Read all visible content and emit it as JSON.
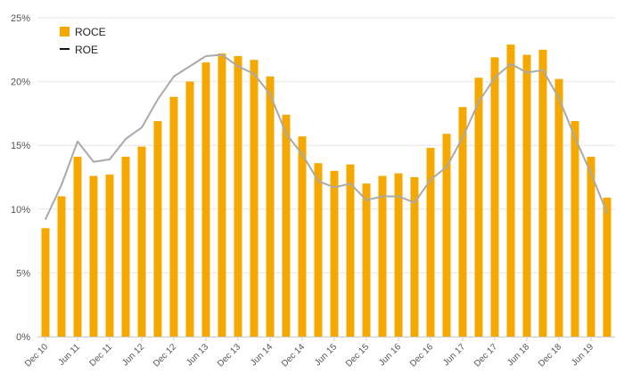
{
  "chart_data": {
    "type": "bar",
    "categories": [
      "Dec 10",
      "Mar 11",
      "Jun 11",
      "Sep 11",
      "Dec 11",
      "Mar 12",
      "Jun 12",
      "Sep 12",
      "Dec 12",
      "Mar 13",
      "Jun 13",
      "Sep 13",
      "Dec 13",
      "Mar 14",
      "Jun 14",
      "Sep 14",
      "Dec 14",
      "Mar 15",
      "Jun 15",
      "Sep 15",
      "Dec 15",
      "Mar 16",
      "Jun 16",
      "Sep 16",
      "Dec 16",
      "Mar 17",
      "Jun 17",
      "Sep 17",
      "Dec 17",
      "Mar 18",
      "Jun 18",
      "Sep 18",
      "Dec 18",
      "Mar 19",
      "Jun 19",
      "Sep 19"
    ],
    "x_tick_labels": [
      "Dec 10",
      "Jun 11",
      "Dec 11",
      "Jun 12",
      "Dec 12",
      "Jun 13",
      "Dec 13",
      "Jun 14",
      "Dec 14",
      "Jun 15",
      "Dec 15",
      "Jun 16",
      "Dec 16",
      "Jun 17",
      "Dec 17",
      "Jun 18",
      "Dec 18",
      "Jun 19"
    ],
    "series": [
      {
        "name": "ROCE",
        "kind": "bar",
        "color": "#f5a800",
        "values": [
          8.5,
          11.0,
          14.1,
          12.6,
          12.7,
          14.1,
          14.9,
          16.9,
          18.8,
          20.0,
          21.5,
          22.2,
          22.0,
          21.7,
          20.4,
          17.4,
          15.7,
          13.6,
          13.0,
          13.5,
          12.0,
          12.6,
          12.8,
          12.5,
          14.8,
          15.9,
          18.0,
          20.3,
          21.9,
          22.9,
          22.1,
          22.5,
          20.2,
          16.9,
          14.1,
          10.9
        ]
      },
      {
        "name": "ROE",
        "kind": "line",
        "color": "#aaaaaa",
        "values": [
          9.2,
          11.9,
          15.3,
          13.7,
          13.9,
          15.5,
          16.4,
          18.6,
          20.4,
          21.2,
          22.0,
          22.1,
          21.2,
          20.6,
          19.0,
          15.9,
          14.3,
          12.2,
          11.7,
          12.0,
          10.7,
          11.0,
          11.0,
          10.5,
          12.3,
          13.3,
          15.6,
          18.4,
          20.3,
          21.4,
          20.7,
          20.9,
          18.7,
          15.6,
          12.8,
          9.7
        ]
      }
    ],
    "y_tick_labels": [
      "0%",
      "5%",
      "10%",
      "15%",
      "20%",
      "25%"
    ],
    "ylim": [
      0,
      25
    ],
    "grid": true,
    "legend_position": "top-left",
    "legend_line_swatch_color": "#111111",
    "title": "",
    "xlabel": "",
    "ylabel": ""
  }
}
